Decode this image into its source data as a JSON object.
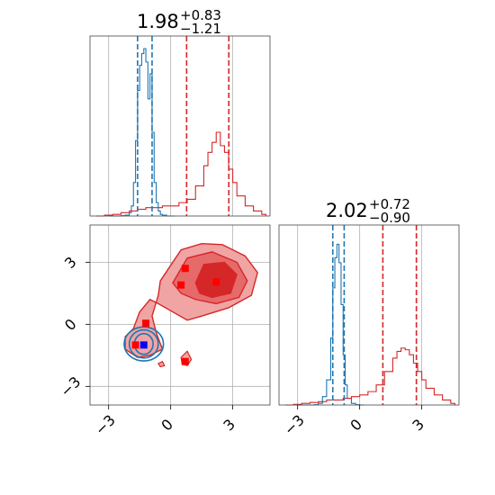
{
  "colors": {
    "blue": "#1f77b4",
    "red": "#d62728",
    "red_light": "#f0a4a4",
    "grid": "#b0b0b0"
  },
  "chart_data": {
    "type": "corner",
    "parameters": [
      "p0",
      "p1"
    ],
    "axis_range": [
      -3.9,
      4.8
    ],
    "ticks": [
      -3,
      0,
      3
    ],
    "tick_labels": [
      "−3",
      "0",
      "3"
    ],
    "grid": true,
    "titles": [
      {
        "median": "1.98",
        "plus": "+0.83",
        "minus": "−1.21"
      },
      {
        "median": "2.02",
        "plus": "+0.72",
        "minus": "−0.90"
      }
    ],
    "histograms": [
      {
        "panel": "p0",
        "blue": {
          "x": [
            -3.0,
            -2.8,
            -2.6,
            -2.4,
            -2.2,
            -2.0,
            -1.9,
            -1.8,
            -1.7,
            -1.6,
            -1.5,
            -1.4,
            -1.3,
            -1.2,
            -1.1,
            -1.0,
            -0.9,
            -0.8,
            -0.7,
            -0.6,
            -0.5,
            -0.4,
            -0.2,
            0.0
          ],
          "y": [
            0,
            0,
            0,
            0.002,
            0.005,
            0.02,
            0.06,
            0.2,
            0.45,
            0.75,
            0.9,
            0.97,
            1.0,
            0.92,
            0.7,
            0.85,
            0.5,
            0.2,
            0.08,
            0.03,
            0.01,
            0.005,
            0,
            0
          ],
          "quantile_lines": [
            -1.6,
            -0.9
          ]
        },
        "red": {
          "x": [
            -3.6,
            -3.2,
            -2.8,
            -2.4,
            -2.0,
            -1.6,
            -1.2,
            -0.8,
            -0.4,
            0.0,
            0.4,
            0.8,
            1.2,
            1.6,
            1.8,
            2.0,
            2.2,
            2.4,
            2.6,
            2.8,
            3.0,
            3.2,
            3.6,
            4.0,
            4.4
          ],
          "y": [
            0,
            0.005,
            0.01,
            0.02,
            0.03,
            0.04,
            0.05,
            0.05,
            0.06,
            0.06,
            0.08,
            0.1,
            0.18,
            0.3,
            0.38,
            0.44,
            0.5,
            0.42,
            0.38,
            0.28,
            0.2,
            0.12,
            0.06,
            0.03,
            0.01
          ],
          "quantile_lines": [
            0.77,
            2.81
          ]
        }
      },
      {
        "panel": "p1",
        "blue": {
          "x": [
            -3.0,
            -2.6,
            -2.2,
            -2.0,
            -1.8,
            -1.6,
            -1.4,
            -1.3,
            -1.2,
            -1.1,
            -1.0,
            -0.9,
            -0.8,
            -0.7,
            -0.6,
            -0.4,
            -0.2,
            0.0
          ],
          "y": [
            0,
            0,
            0.002,
            0.01,
            0.05,
            0.15,
            0.4,
            0.7,
            0.88,
            0.96,
            0.85,
            0.6,
            0.3,
            0.12,
            0.04,
            0.01,
            0.002,
            0
          ],
          "quantile_lines": [
            -1.3,
            -0.75
          ]
        },
        "red": {
          "x": [
            -3.6,
            -3.2,
            -2.8,
            -2.4,
            -2.0,
            -1.6,
            -1.2,
            -0.8,
            -0.4,
            0.0,
            0.4,
            0.8,
            1.2,
            1.6,
            1.8,
            2.0,
            2.2,
            2.4,
            2.6,
            2.8,
            3.0,
            3.2,
            3.6,
            4.0,
            4.4
          ],
          "y": [
            0,
            0.004,
            0.01,
            0.015,
            0.02,
            0.03,
            0.03,
            0.04,
            0.05,
            0.06,
            0.08,
            0.12,
            0.2,
            0.28,
            0.32,
            0.34,
            0.33,
            0.3,
            0.25,
            0.2,
            0.15,
            0.1,
            0.06,
            0.03,
            0.01
          ],
          "quantile_lines": [
            1.12,
            2.74
          ]
        }
      }
    ],
    "scatter_2d": {
      "red_points": [
        [
          0.7,
          2.7
        ],
        [
          0.5,
          1.9
        ],
        [
          2.2,
          2.05
        ],
        [
          -1.2,
          0.05
        ],
        [
          -1.7,
          -1.0
        ],
        [
          0.7,
          -1.8
        ]
      ],
      "blue_points": [
        [
          -1.3,
          -1.0
        ]
      ]
    },
    "contours_2d": {
      "red_outer": [
        [
          -0.5,
          2.1
        ],
        [
          0.5,
          3.6
        ],
        [
          1.5,
          3.9
        ],
        [
          2.5,
          3.85
        ],
        [
          3.6,
          3.3
        ],
        [
          4.2,
          2.5
        ],
        [
          3.9,
          1.4
        ],
        [
          2.8,
          0.8
        ],
        [
          1.5,
          0.4
        ],
        [
          0.8,
          0.2
        ],
        [
          0.1,
          0.6
        ],
        [
          -0.6,
          1.0
        ],
        [
          -1.0,
          1.2
        ],
        [
          -1.5,
          0.6
        ],
        [
          -1.8,
          -0.2
        ],
        [
          -2.2,
          -0.6
        ],
        [
          -2.2,
          -1.2
        ],
        [
          -1.6,
          -1.6
        ],
        [
          -1.0,
          -1.5
        ],
        [
          -0.4,
          -1.2
        ],
        [
          -0.7,
          -0.4
        ],
        [
          -0.9,
          0.4
        ],
        [
          -0.6,
          1.4
        ],
        [
          -0.5,
          2.1
        ]
      ],
      "red_mid": [
        [
          0.1,
          2.0
        ],
        [
          0.8,
          3.2
        ],
        [
          2.0,
          3.5
        ],
        [
          3.2,
          3.0
        ],
        [
          3.7,
          2.1
        ],
        [
          3.3,
          1.3
        ],
        [
          2.2,
          1.0
        ],
        [
          1.2,
          1.2
        ],
        [
          0.5,
          1.5
        ],
        [
          0.1,
          2.0
        ]
      ],
      "red_inner": [
        [
          1.2,
          2.0
        ],
        [
          1.6,
          2.9
        ],
        [
          2.6,
          3.0
        ],
        [
          3.2,
          2.4
        ],
        [
          2.9,
          1.5
        ],
        [
          2.0,
          1.3
        ],
        [
          1.4,
          1.5
        ],
        [
          1.2,
          2.0
        ]
      ],
      "red_small_islands": [
        [
          [
            0.5,
            -1.6
          ],
          [
            0.8,
            -1.3
          ],
          [
            1.0,
            -1.7
          ],
          [
            0.8,
            -2.0
          ],
          [
            0.55,
            -1.9
          ],
          [
            0.5,
            -1.6
          ]
        ],
        [
          [
            -0.6,
            -1.9
          ],
          [
            -0.4,
            -1.8
          ],
          [
            -0.3,
            -2.0
          ],
          [
            -0.5,
            -2.05
          ],
          [
            -0.6,
            -1.9
          ]
        ]
      ],
      "blue_rings": [
        {
          "cx": -1.3,
          "cy": -0.95,
          "rx": 0.45,
          "ry": 0.5
        },
        {
          "cx": -1.3,
          "cy": -0.95,
          "rx": 0.7,
          "ry": 0.68
        },
        {
          "cx": -1.3,
          "cy": -0.95,
          "rx": 0.95,
          "ry": 0.82
        }
      ]
    }
  }
}
